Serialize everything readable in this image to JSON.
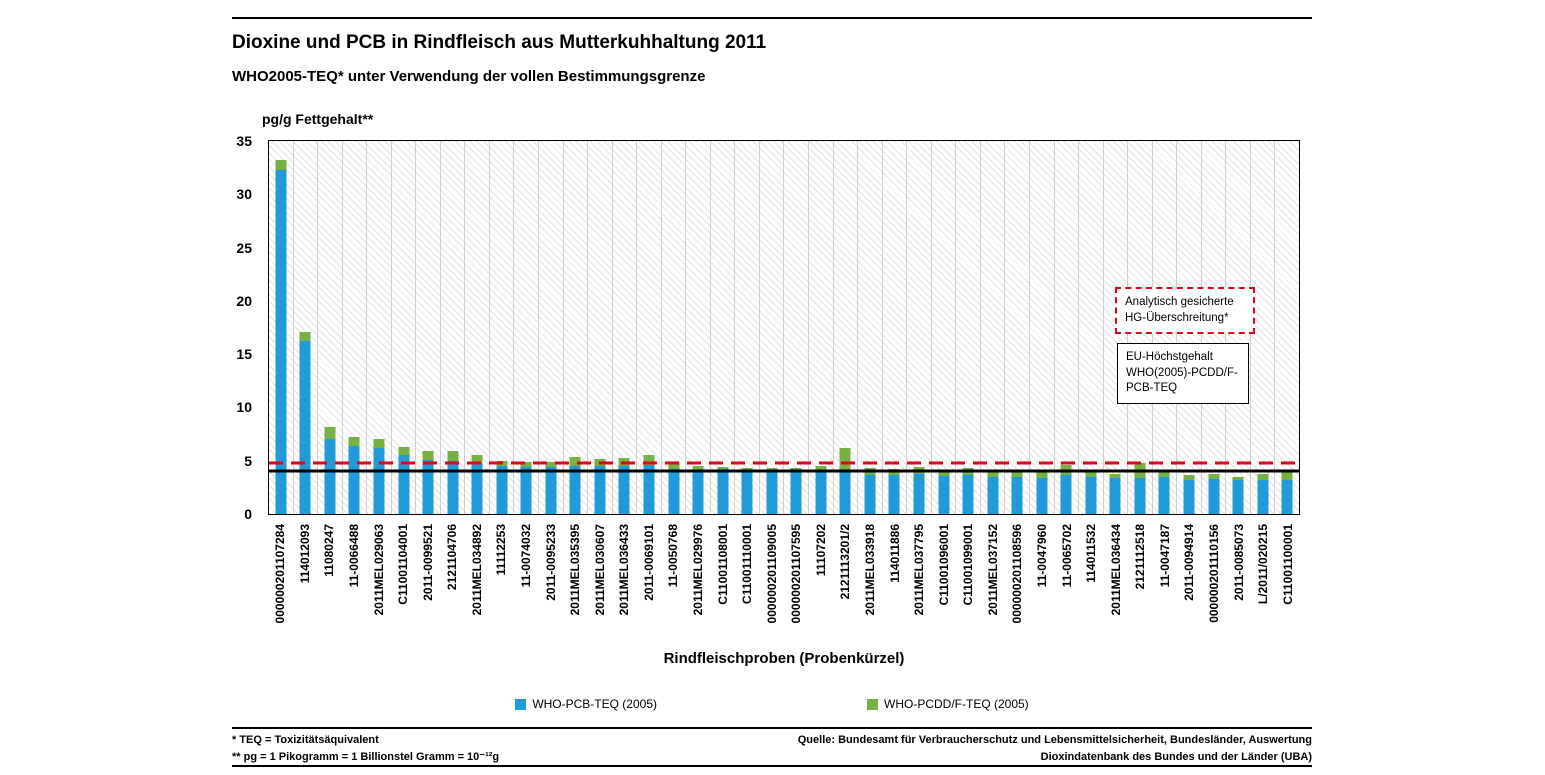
{
  "header": {
    "title": "Dioxine und PCB in Rindfleisch aus Mutterkuhhaltung 2011",
    "subtitle": "WHO2005-TEQ* unter Verwendung der vollen Bestimmungsgrenze"
  },
  "chart_data": {
    "type": "bar",
    "stacked": true,
    "title": "Dioxine und PCB in Rindfleisch aus Mutterkuhhaltung 2011",
    "subtitle": "WHO2005-TEQ* unter Verwendung der vollen Bestimmungsgrenze",
    "ylabel": "pg/g Fettgehalt**",
    "xlabel": "Rindfleischproben (Probenkürzel)",
    "ylim": [
      0,
      35
    ],
    "ytick_step": 5,
    "grid": "vertical-category-lines",
    "plot_background": "diagonal-hatch",
    "legend_position": "bottom",
    "categories": [
      "000000201107284",
      "114012093",
      "11080247",
      "11-0066488",
      "2011MEL029063",
      "C11001104001",
      "2011-0099521",
      "2121104706",
      "2011MEL034892",
      "11112253",
      "11-0074032",
      "2011-0095233",
      "2011MEL035395",
      "2011MEL030607",
      "2011MEL036433",
      "2011-0069101",
      "11-0050768",
      "2011MEL029976",
      "C11001108001",
      "C11001110001",
      "000000201109005",
      "000000201107595",
      "11107202",
      "2121113201/2",
      "2011MEL033918",
      "114011886",
      "2011MEL037795",
      "C11001096001",
      "C11001099001",
      "2011MEL037152",
      "000000201108596",
      "11-0047960",
      "11-0065702",
      "114011532",
      "2011MEL036434",
      "2121112518",
      "11-0047187",
      "2011-0094914",
      "000000201110156",
      "2011-0085073",
      "L/2011/020215",
      "C11001100001"
    ],
    "series": [
      {
        "name": "WHO-PCB-TEQ (2005)",
        "color": "#209bd8",
        "values": [
          32.3,
          16.2,
          7.0,
          6.4,
          6.2,
          5.5,
          5.1,
          5.0,
          4.8,
          4.5,
          4.4,
          4.4,
          4.5,
          4.5,
          4.5,
          4.6,
          4.2,
          4.1,
          4.2,
          4.0,
          4.0,
          4.0,
          4.1,
          4.0,
          3.7,
          3.7,
          3.8,
          3.6,
          3.7,
          3.5,
          3.5,
          3.4,
          3.7,
          3.5,
          3.4,
          3.4,
          3.5,
          3.2,
          3.3,
          3.2,
          3.2,
          3.2
        ]
      },
      {
        "name": "WHO-PCDD/F-TEQ (2005)",
        "color": "#76b143",
        "values": [
          0.9,
          0.9,
          1.2,
          0.8,
          0.8,
          0.8,
          0.8,
          0.9,
          0.7,
          0.5,
          0.5,
          0.5,
          0.85,
          0.7,
          0.8,
          0.95,
          0.7,
          0.4,
          0.2,
          0.3,
          0.3,
          0.3,
          0.4,
          2.2,
          0.6,
          0.5,
          0.6,
          0.4,
          0.6,
          0.5,
          0.4,
          0.6,
          0.9,
          0.5,
          0.4,
          1.4,
          0.6,
          0.5,
          0.5,
          0.3,
          0.6,
          0.7
        ]
      }
    ],
    "reference_lines": [
      {
        "label": "Analytisch gesicherte HG-Überschreitung*",
        "value": 4.8,
        "color": "#e2001a",
        "style": "dashed"
      },
      {
        "label": "EU-Höchstgehalt WHO(2005)-PCDD/F-PCB-TEQ",
        "value": 4.0,
        "color": "#000000",
        "style": "solid"
      }
    ]
  },
  "annotations": {
    "exceedance": "Analytisch gesicherte HG-Überschreitung*",
    "eu_limit": "EU-Höchstgehalt WHO(2005)-PCDD/F-PCB-TEQ"
  },
  "legend": {
    "items": [
      {
        "label": "WHO-PCB-TEQ (2005)",
        "color": "#209bd8"
      },
      {
        "label": "WHO-PCDD/F-TEQ (2005)",
        "color": "#76b143"
      }
    ]
  },
  "footer": {
    "footnote1": "* TEQ = Toxizitätsäquivalent",
    "footnote2": "** pg = 1 Pikogramm = 1 Billionstel Gramm = 10⁻¹²g",
    "source_line1": "Quelle: Bundesamt für Verbraucherschutz und Lebensmittelsicherheit, Bundesländer, Auswertung",
    "source_line2": "Dioxindatenbank des Bundes und der Länder (UBA)"
  }
}
